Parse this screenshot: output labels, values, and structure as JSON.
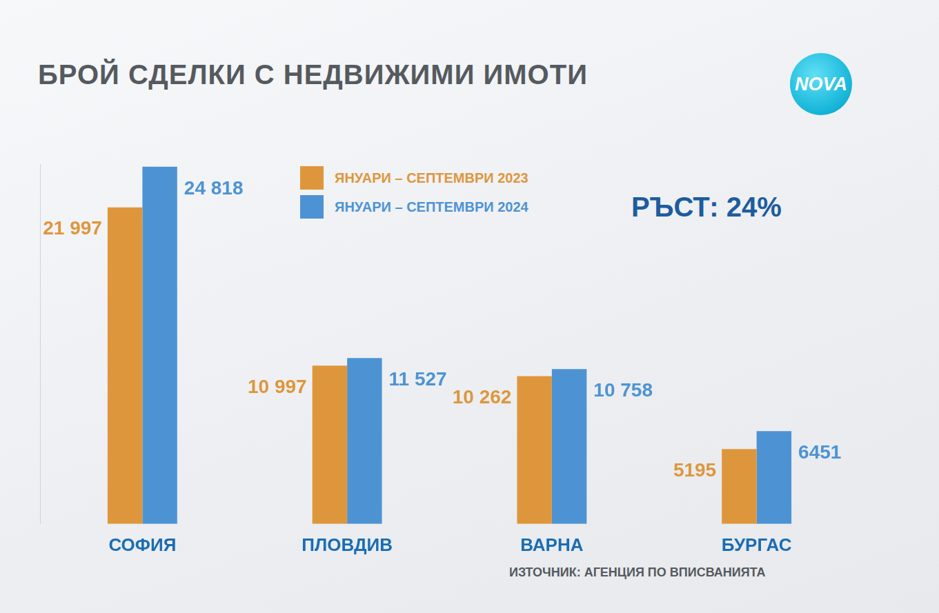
{
  "chart_data": {
    "type": "bar",
    "title": "БРОЙ СДЕЛКИ С НЕДВИЖИМИ ИМОТИ",
    "annotations": [
      "РЪСТ: 24%"
    ],
    "source": "ИЗТОЧНИК: АГЕНЦИЯ ПО ВПИСВАНИЯТА",
    "logo": "NOVA",
    "categories": [
      "СОФИЯ",
      "ПЛОВДИВ",
      "ВАРНА",
      "БУРГАС"
    ],
    "series": [
      {
        "name": "ЯНУАРИ – СЕПТЕМВРИ 2023",
        "color": "#de963c",
        "values": [
          21997,
          10997,
          10262,
          5195
        ],
        "value_labels": [
          "21 997",
          "10 997",
          "10 262",
          "5195"
        ]
      },
      {
        "name": "ЯНУАРИ – СЕПТЕМВРИ 2024",
        "color": "#4d93d3",
        "values": [
          24818,
          11527,
          10758,
          6451
        ],
        "value_labels": [
          "24 818",
          "11 527",
          "10 758",
          "6451"
        ]
      }
    ],
    "ylim": [
      0,
      25000
    ],
    "yticks": [],
    "grid": false,
    "legend": "top",
    "data_labels": true,
    "tick_labels": "x"
  }
}
